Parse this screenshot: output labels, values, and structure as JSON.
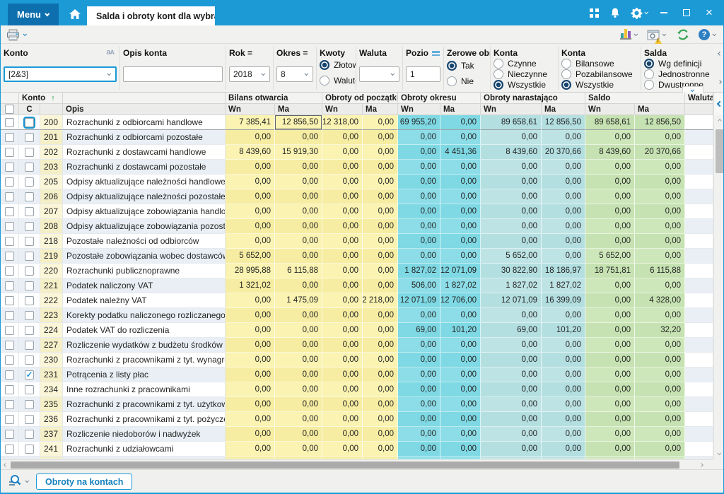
{
  "titlebar": {
    "menu_label": "Menu",
    "tab_title": "Salda i obroty kont dla wybra"
  },
  "filters": {
    "konto": {
      "label": "Konto",
      "value": "[2&3]",
      "case_icon": "aA"
    },
    "opis_konta": {
      "label": "Opis konta",
      "value": ""
    },
    "rok": {
      "label": "Rok =",
      "value": "2018"
    },
    "okres": {
      "label": "Okres =",
      "value": "8"
    },
    "kwoty": {
      "label": "Kwoty",
      "options": [
        "Złotow",
        "Waluto"
      ],
      "selected": "Złotow"
    },
    "waluta": {
      "label": "Waluta",
      "value": ""
    },
    "poziom": {
      "label": "Pozio",
      "value": "1"
    },
    "zerowe": {
      "label": "Zerowe obro",
      "options": [
        "Tak",
        "Nie"
      ],
      "selected": "Tak"
    },
    "konta1": {
      "label": "Konta",
      "options": [
        "Czynne",
        "Nieczynne",
        "Wszystkie"
      ],
      "selected": "Wszystkie"
    },
    "konta2": {
      "label": "Konta",
      "options": [
        "Bilansowe",
        "Pozabilansowe",
        "Wszystkie"
      ],
      "selected": "Wszystkie"
    },
    "salda": {
      "label": "Salda",
      "options": [
        "Wg definicji",
        "Jednostronne",
        "Dwustronne"
      ],
      "selected": "Wg definicji"
    }
  },
  "grid": {
    "group_labels": [
      "Konto",
      "",
      "Bilans otwarcia",
      "Obroty od początku ro",
      "Obroty okresu",
      "Obroty narastająco",
      "Saldo",
      "Waluta"
    ],
    "col_c": "C",
    "col_opis": "Opis",
    "wn": "Wn",
    "ma": "Ma",
    "sort": {
      "column": "Konto",
      "direction": "asc"
    },
    "state": {
      "focused_row_konto": "200",
      "focused_cell": {
        "group": "Bilans otwarcia",
        "col": "Ma",
        "value": "12 856,50"
      },
      "checked_row_konto": "231"
    },
    "rows": [
      {
        "konto": "200",
        "opis": "Rozrachunki z odbiorcami handlowe",
        "checked": false,
        "values": [
          "7 385,41",
          "12 856,50",
          "12 318,00",
          "0,00",
          "69 955,20",
          "0,00",
          "89 658,61",
          "12 856,50",
          "89 658,61",
          "12 856,50"
        ]
      },
      {
        "konto": "201",
        "opis": "Rozrachunki z odbiorcami pozostałe",
        "checked": false,
        "values": [
          "0,00",
          "0,00",
          "0,00",
          "0,00",
          "0,00",
          "0,00",
          "0,00",
          "0,00",
          "0,00",
          "0,00"
        ]
      },
      {
        "konto": "202",
        "opis": "Rozrachunki z dostawcami handlowe",
        "checked": false,
        "values": [
          "8 439,60",
          "15 919,30",
          "0,00",
          "0,00",
          "0,00",
          "4 451,36",
          "8 439,60",
          "20 370,66",
          "8 439,60",
          "20 370,66"
        ]
      },
      {
        "konto": "203",
        "opis": "Rozrachunki z dostawcami pozostałe",
        "checked": false,
        "values": [
          "0,00",
          "0,00",
          "0,00",
          "0,00",
          "0,00",
          "0,00",
          "0,00",
          "0,00",
          "0,00",
          "0,00"
        ]
      },
      {
        "konto": "205",
        "opis": "Odpisy aktualizujące należności handlowe",
        "checked": false,
        "values": [
          "0,00",
          "0,00",
          "0,00",
          "0,00",
          "0,00",
          "0,00",
          "0,00",
          "0,00",
          "0,00",
          "0,00"
        ]
      },
      {
        "konto": "206",
        "opis": "Odpisy aktualizujące należności pozostałe",
        "checked": false,
        "values": [
          "0,00",
          "0,00",
          "0,00",
          "0,00",
          "0,00",
          "0,00",
          "0,00",
          "0,00",
          "0,00",
          "0,00"
        ]
      },
      {
        "konto": "207",
        "opis": "Odpisy aktualizujące zobowiązania handlowe",
        "checked": false,
        "values": [
          "0,00",
          "0,00",
          "0,00",
          "0,00",
          "0,00",
          "0,00",
          "0,00",
          "0,00",
          "0,00",
          "0,00"
        ]
      },
      {
        "konto": "208",
        "opis": "Odpisy aktualizujące zobowiązania pozostałe",
        "checked": false,
        "values": [
          "0,00",
          "0,00",
          "0,00",
          "0,00",
          "0,00",
          "0,00",
          "0,00",
          "0,00",
          "0,00",
          "0,00"
        ]
      },
      {
        "konto": "218",
        "opis": "Pozostałe należności od odbiorców",
        "checked": false,
        "values": [
          "0,00",
          "0,00",
          "0,00",
          "0,00",
          "0,00",
          "0,00",
          "0,00",
          "0,00",
          "0,00",
          "0,00"
        ]
      },
      {
        "konto": "219",
        "opis": "Pozostałe zobowiązania wobec dostawców",
        "checked": false,
        "values": [
          "5 652,00",
          "0,00",
          "0,00",
          "0,00",
          "0,00",
          "0,00",
          "5 652,00",
          "0,00",
          "5 652,00",
          "0,00"
        ]
      },
      {
        "konto": "220",
        "opis": "Rozrachunki publicznoprawne",
        "checked": false,
        "values": [
          "28 995,88",
          "6 115,88",
          "0,00",
          "0,00",
          "1 827,02",
          "12 071,09",
          "30 822,90",
          "18 186,97",
          "18 751,81",
          "6 115,88"
        ]
      },
      {
        "konto": "221",
        "opis": "Podatek naliczony VAT",
        "checked": false,
        "values": [
          "1 321,02",
          "0,00",
          "0,00",
          "0,00",
          "506,00",
          "1 827,02",
          "1 827,02",
          "1 827,02",
          "0,00",
          "0,00"
        ]
      },
      {
        "konto": "222",
        "opis": "Podatek należny VAT",
        "checked": false,
        "values": [
          "0,00",
          "1 475,09",
          "0,00",
          "2 218,00",
          "12 071,09",
          "12 706,00",
          "12 071,09",
          "16 399,09",
          "0,00",
          "4 328,00"
        ]
      },
      {
        "konto": "223",
        "opis": "Korekty podatku naliczonego rozliczanego stru",
        "checked": false,
        "values": [
          "0,00",
          "0,00",
          "0,00",
          "0,00",
          "0,00",
          "0,00",
          "0,00",
          "0,00",
          "0,00",
          "0,00"
        ]
      },
      {
        "konto": "224",
        "opis": "Podatek VAT do rozliczenia",
        "checked": false,
        "values": [
          "0,00",
          "0,00",
          "0,00",
          "0,00",
          "69,00",
          "101,20",
          "69,00",
          "101,20",
          "0,00",
          "32,20"
        ]
      },
      {
        "konto": "227",
        "opis": "Rozliczenie wydatków z budżetu środków euro",
        "checked": false,
        "values": [
          "0,00",
          "0,00",
          "0,00",
          "0,00",
          "0,00",
          "0,00",
          "0,00",
          "0,00",
          "0,00",
          "0,00"
        ]
      },
      {
        "konto": "230",
        "opis": "Rozrachunki z pracownikami z tyt. wynagrodze",
        "checked": false,
        "values": [
          "0,00",
          "0,00",
          "0,00",
          "0,00",
          "0,00",
          "0,00",
          "0,00",
          "0,00",
          "0,00",
          "0,00"
        ]
      },
      {
        "konto": "231",
        "opis": "Potrącenia z listy płac",
        "checked": true,
        "values": [
          "0,00",
          "0,00",
          "0,00",
          "0,00",
          "0,00",
          "0,00",
          "0,00",
          "0,00",
          "0,00",
          "0,00"
        ]
      },
      {
        "konto": "234",
        "opis": "Inne rozrachunki z pracownikami",
        "checked": false,
        "values": [
          "0,00",
          "0,00",
          "0,00",
          "0,00",
          "0,00",
          "0,00",
          "0,00",
          "0,00",
          "0,00",
          "0,00"
        ]
      },
      {
        "konto": "235",
        "opis": "Rozrachunki z pracownikami z tyt. użytkowani",
        "checked": false,
        "values": [
          "0,00",
          "0,00",
          "0,00",
          "0,00",
          "0,00",
          "0,00",
          "0,00",
          "0,00",
          "0,00",
          "0,00"
        ]
      },
      {
        "konto": "236",
        "opis": "Rozrachunki z pracownikami z tyt. pożyczek i s",
        "checked": false,
        "values": [
          "0,00",
          "0,00",
          "0,00",
          "0,00",
          "0,00",
          "0,00",
          "0,00",
          "0,00",
          "0,00",
          "0,00"
        ]
      },
      {
        "konto": "237",
        "opis": "Rozliczenie niedoborów i nadwyżek",
        "checked": false,
        "values": [
          "0,00",
          "0,00",
          "0,00",
          "0,00",
          "0,00",
          "0,00",
          "0,00",
          "0,00",
          "0,00",
          "0,00"
        ]
      },
      {
        "konto": "241",
        "opis": "Rozrachunki z udziałowcami",
        "checked": false,
        "values": [
          "0,00",
          "0,00",
          "0,00",
          "0,00",
          "0,00",
          "0,00",
          "0,00",
          "0,00",
          "0,00",
          "0,00"
        ]
      }
    ]
  },
  "statusbar": {
    "view_button": "Obroty na kontach"
  },
  "colors": {
    "accent_blue": "#1c9ad6",
    "menu_blue": "#0d6fae",
    "yellow_col": "#faf3b2",
    "cyan_col": "#7fd9e4",
    "teal_col": "#b4dfe1",
    "green_col": "#c6e2b2"
  }
}
